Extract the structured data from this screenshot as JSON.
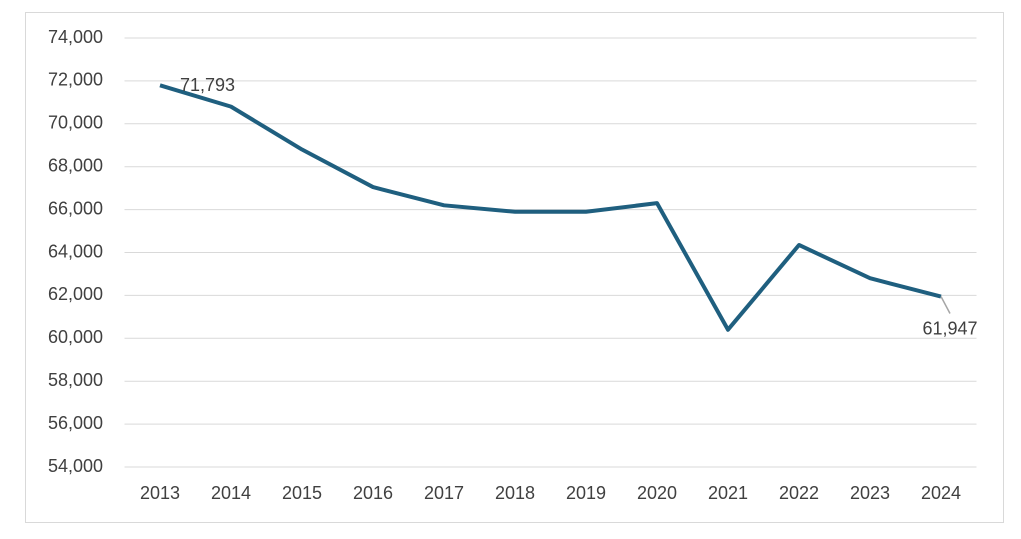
{
  "chart_data": {
    "type": "line",
    "categories": [
      "2013",
      "2014",
      "2015",
      "2016",
      "2017",
      "2018",
      "2019",
      "2020",
      "2021",
      "2022",
      "2023",
      "2024"
    ],
    "series": [
      {
        "color": "#1f5f7f",
        "values": [
          71793,
          70800,
          68800,
          67050,
          66200,
          65900,
          65900,
          66300,
          60400,
          64350,
          62800,
          61947
        ],
        "value_labels": [
          "71,793",
          null,
          null,
          null,
          null,
          null,
          null,
          null,
          null,
          null,
          null,
          "61,947"
        ]
      }
    ],
    "ylim": [
      54000,
      74000
    ],
    "yticks": [
      {
        "value": 54000,
        "label": "54,000"
      },
      {
        "value": 56000,
        "label": "56,000"
      },
      {
        "value": 58000,
        "label": "58,000"
      },
      {
        "value": 60000,
        "label": "60,000"
      },
      {
        "value": 62000,
        "label": "62,000"
      },
      {
        "value": 64000,
        "label": "64,000"
      },
      {
        "value": 66000,
        "label": "66,000"
      },
      {
        "value": 68000,
        "label": "68,000"
      },
      {
        "value": 70000,
        "label": "70,000"
      },
      {
        "value": 72000,
        "label": "72,000"
      },
      {
        "value": 74000,
        "label": "74,000"
      }
    ],
    "grid": true
  }
}
